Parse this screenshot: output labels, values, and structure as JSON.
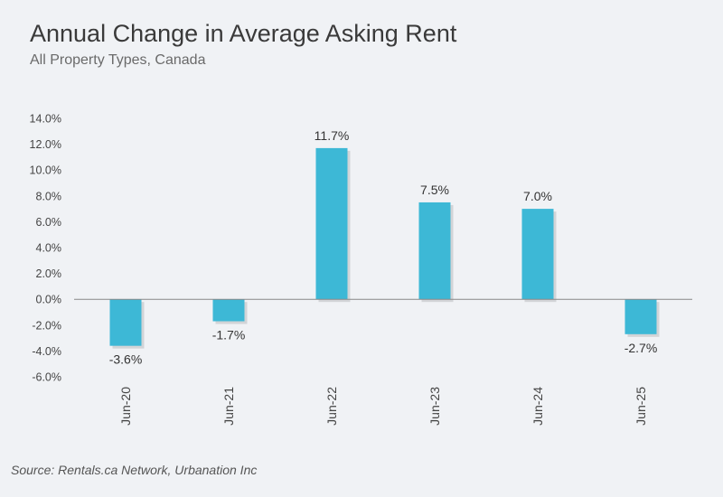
{
  "title": "Annual Change in Average Asking Rent",
  "subtitle": "All Property Types, Canada",
  "source": "Source: Rentals.ca Network, Urbanation Inc",
  "colors": {
    "bar": "#3db8d6",
    "axis": "#888888",
    "background": "#f0f2f5"
  },
  "chart_data": {
    "type": "bar",
    "categories": [
      "Jun-20",
      "Jun-21",
      "Jun-22",
      "Jun-23",
      "Jun-24",
      "Jun-25"
    ],
    "values": [
      -3.6,
      -1.7,
      11.7,
      7.5,
      7.0,
      -2.7
    ],
    "data_labels": [
      "-3.6%",
      "-1.7%",
      "11.7%",
      "7.5%",
      "7.0%",
      "-2.7%"
    ],
    "yticks": [
      14.0,
      12.0,
      10.0,
      8.0,
      6.0,
      4.0,
      2.0,
      0.0,
      -2.0,
      -4.0,
      -6.0
    ],
    "ytick_labels": [
      "14.0%",
      "12.0%",
      "10.0%",
      "8.0%",
      "6.0%",
      "4.0%",
      "2.0%",
      "0.0%",
      "-2.0%",
      "-4.0%",
      "-6.0%"
    ],
    "ylim": [
      -6,
      14
    ],
    "grid": false,
    "legend": "none",
    "xlabel": "",
    "ylabel": ""
  }
}
